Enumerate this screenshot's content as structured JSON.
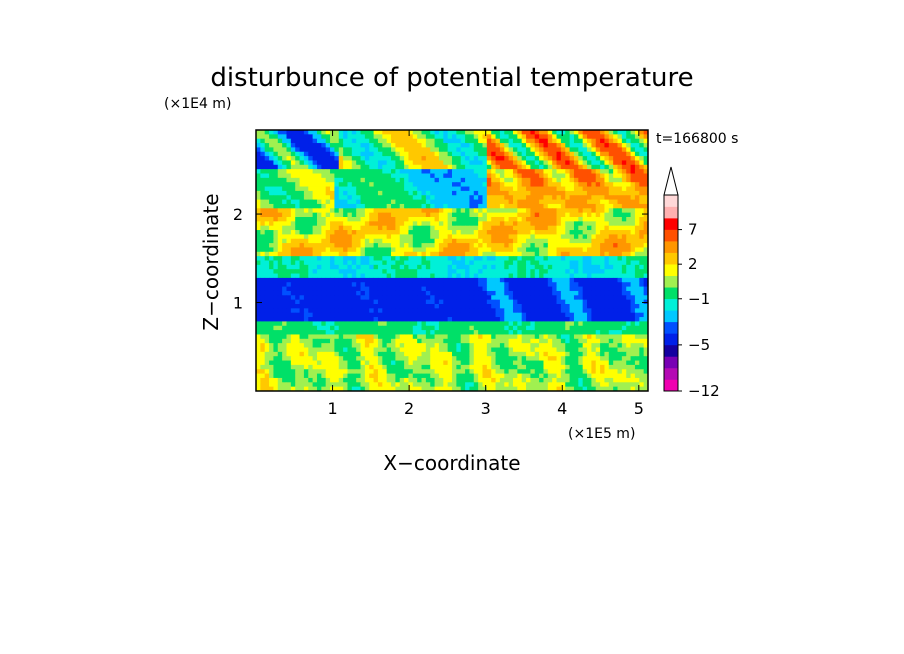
{
  "chart_data": {
    "type": "heatmap",
    "title": "disturbunce of potential temperature",
    "xlabel": "X−coordinate",
    "ylabel": "Z−coordinate",
    "x_unit": "(×1E5 m)",
    "y_unit": "(×1E4 m)",
    "time_label": "t=166800 s",
    "xlim": [
      0,
      5.12
    ],
    "ylim": [
      0,
      2.95
    ],
    "x_ticks": [
      1,
      2,
      3,
      4,
      5
    ],
    "x_tick_labels": [
      "1",
      "2",
      "3",
      "4",
      "5"
    ],
    "y_ticks": [
      1,
      2
    ],
    "y_tick_labels": [
      "1",
      "2"
    ],
    "colorbar": {
      "levels": [
        -12,
        -10,
        -8,
        -6,
        -5,
        -4,
        -3,
        -2,
        -1,
        0,
        1,
        2,
        3,
        5,
        7,
        9,
        11
      ],
      "colors": [
        "#f000b0",
        "#b40ab4",
        "#7800b4",
        "#1400a0",
        "#0020e8",
        "#0050ff",
        "#00c8ff",
        "#00f0d8",
        "#00e068",
        "#a0f050",
        "#ffff00",
        "#ffc800",
        "#ff9600",
        "#ff5000",
        "#ff0000",
        "#ffb0b0",
        "#ffd8d8"
      ],
      "tick_values": [
        -12,
        -5,
        -1,
        2,
        7
      ],
      "tick_labels": [
        "−12",
        "−5",
        "−1",
        "2",
        "7"
      ],
      "extend": "max"
    },
    "field_description_rows_top_to_bottom": [
      {
        "z": [
          2.5,
          2.95
        ],
        "dominant": "mixed small cells: blue/cyan west, orange/red east"
      },
      {
        "z": [
          2.0,
          2.5
        ],
        "dominant": "green/cyan west, cyan band centre, orange/red east"
      },
      {
        "z": [
          1.5,
          2.0
        ],
        "dominant": "yellow-orange tilted band"
      },
      {
        "z": [
          1.3,
          1.5
        ],
        "dominant": "green/cyan"
      },
      {
        "z": [
          0.8,
          1.3
        ],
        "dominant": "blue (about -5)"
      },
      {
        "z": [
          0.6,
          0.8
        ],
        "dominant": "green"
      },
      {
        "z": [
          0.0,
          0.6
        ],
        "dominant": "yellow/green with small orange patches"
      }
    ]
  }
}
